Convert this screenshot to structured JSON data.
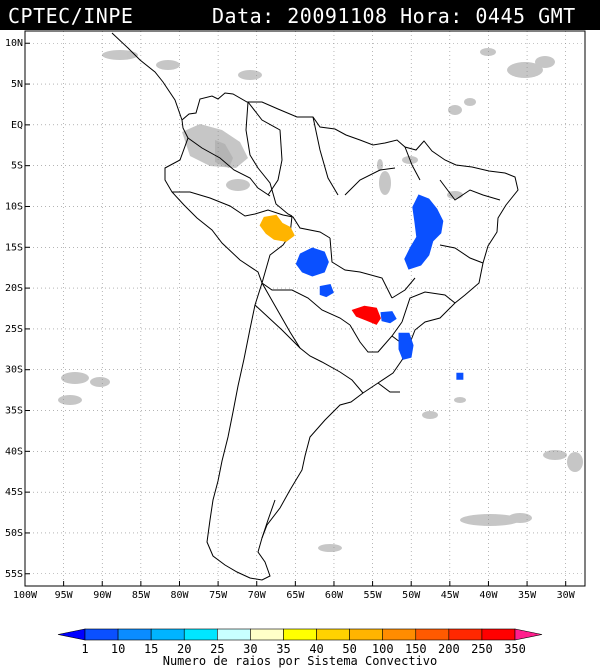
{
  "header": {
    "source": "CPTEC/INPE",
    "datetime": "Data: 20091108 Hora: 0445 GMT"
  },
  "map": {
    "lat_labels": [
      "10N",
      "5N",
      "EQ",
      "5S",
      "10S",
      "15S",
      "20S",
      "25S",
      "30S",
      "35S",
      "40S",
      "45S",
      "50S",
      "55S"
    ],
    "lon_labels": [
      "100W",
      "95W",
      "90W",
      "85W",
      "80W",
      "75W",
      "70W",
      "65W",
      "60W",
      "55W",
      "50W",
      "45W",
      "40W",
      "35W",
      "30W"
    ],
    "lat_extent": [
      11.5,
      -56.5
    ],
    "lon_extent": [
      -100,
      -27.5
    ],
    "grid": "dotted"
  },
  "colorbar": {
    "ticks": [
      "1",
      "10",
      "15",
      "20",
      "25",
      "30",
      "35",
      "40",
      "50",
      "100",
      "150",
      "200",
      "250",
      "350"
    ],
    "colors": [
      "#0000ff",
      "#0a50ff",
      "#0a8cff",
      "#00b4ff",
      "#00e6ff",
      "#c8ffff",
      "#ffffc8",
      "#ffff00",
      "#ffd200",
      "#ffb400",
      "#ff8c00",
      "#ff5a00",
      "#ff2800",
      "#ff0000",
      "#ff1e8c"
    ],
    "caption": "Numero de raios por Sistema Convectivo"
  },
  "systems": [
    {
      "name": "bolivia-north",
      "lat": -12.8,
      "lon": -68.0,
      "color": "#ffb400"
    },
    {
      "name": "bolivia-east",
      "lat": -16.8,
      "lon": -62.8,
      "color": "#0a50ff"
    },
    {
      "name": "brazil-central",
      "lat": -13.5,
      "lon": -48.5,
      "color": "#0a50ff"
    },
    {
      "name": "paraguay-a",
      "lat": -20.3,
      "lon": -61.0,
      "color": "#0a50ff"
    },
    {
      "name": "parana",
      "lat": -23.2,
      "lon": -55.8,
      "color": "#ff0000"
    },
    {
      "name": "parana-blue",
      "lat": -23.5,
      "lon": -53.0,
      "color": "#0a50ff"
    },
    {
      "name": "south-brazil",
      "lat": -27.0,
      "lon": -50.8,
      "color": "#0a50ff"
    },
    {
      "name": "atlantic",
      "lat": -30.8,
      "lon": -43.7,
      "color": "#0a50ff"
    }
  ]
}
